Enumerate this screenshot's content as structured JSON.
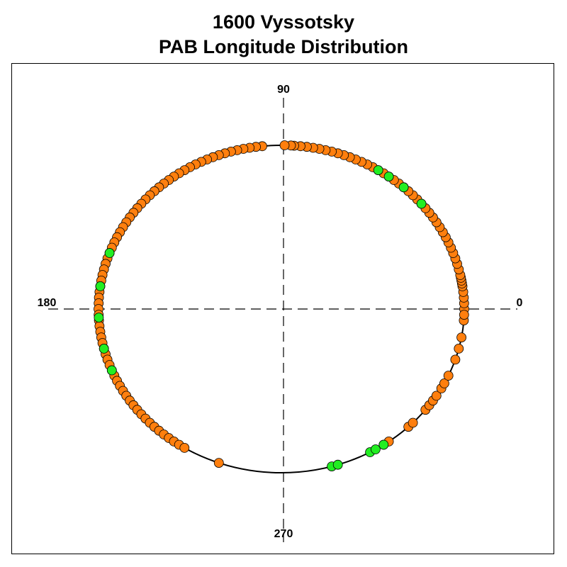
{
  "chart_data": {
    "type": "scatter",
    "projection": "polar",
    "title": "1600 Vyssotsky",
    "subtitle": "PAB Longitude Distribution",
    "angle_labels": [
      "0",
      "90",
      "180",
      "270"
    ],
    "grid": false,
    "point_colors": {
      "primary": "#ff7f0e",
      "highlight": "#22ee22",
      "outline": "#000000"
    },
    "series": [
      {
        "color": "#ff7f0e",
        "longitudes_deg": [
          0,
          2,
          4,
          6,
          8,
          9,
          10,
          11,
          12,
          14,
          16,
          18,
          20,
          22,
          24,
          26,
          28,
          30,
          32,
          34,
          36,
          38,
          40,
          42,
          44,
          46,
          48,
          50,
          52,
          54,
          56,
          58,
          60,
          62,
          64,
          66,
          68,
          70,
          72,
          74,
          76,
          78,
          80,
          82,
          84,
          86,
          87,
          89,
          96,
          98,
          100,
          102,
          104,
          106,
          108,
          110,
          112,
          114,
          116,
          118,
          120,
          122,
          124,
          126,
          128,
          130,
          132,
          134,
          136,
          138,
          140,
          142,
          144,
          146,
          148,
          150,
          152,
          154,
          156,
          158,
          160,
          162,
          164,
          166,
          168,
          170,
          172,
          174,
          176,
          178,
          180,
          182,
          184,
          186,
          188,
          190,
          192,
          194,
          196,
          198,
          200,
          202,
          204,
          206,
          208,
          210,
          212,
          214,
          216,
          218,
          220,
          222,
          224,
          226,
          228,
          230,
          232,
          234,
          236,
          238,
          250,
          304,
          306,
          314,
          316,
          322,
          324,
          326,
          328,
          331,
          333,
          336,
          342,
          346,
          350,
          356,
          358
        ],
        "radius": 1.0
      },
      {
        "color": "#22ee22",
        "longitudes_deg": [
          40,
          48,
          54,
          58,
          160,
          172,
          183,
          194,
          202,
          286,
          288,
          299,
          301,
          304
        ],
        "radius": 1.0
      }
    ]
  }
}
